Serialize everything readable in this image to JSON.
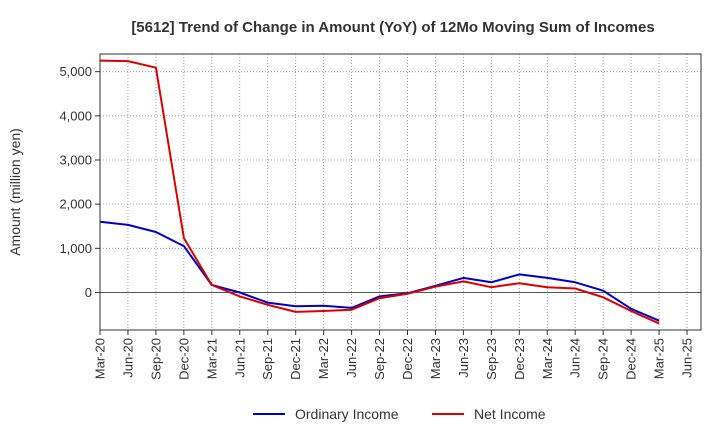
{
  "chart_data": {
    "type": "line",
    "title": "[5612]  Trend of Change in Amount (YoY) of 12Mo Moving Sum of Incomes",
    "xlabel": "",
    "ylabel": "Amount (million yen)",
    "ylim": [
      -850,
      5400
    ],
    "yticks": [
      0,
      1000,
      2000,
      3000,
      4000,
      5000
    ],
    "ytick_labels": [
      "0",
      "1,000",
      "2,000",
      "3,000",
      "4,000",
      "5,000"
    ],
    "categories": [
      "Mar-20",
      "Jun-20",
      "Sep-20",
      "Dec-20",
      "Mar-21",
      "Jun-21",
      "Sep-21",
      "Dec-21",
      "Mar-22",
      "Jun-22",
      "Sep-22",
      "Dec-22",
      "Mar-23",
      "Jun-23",
      "Sep-23",
      "Dec-23",
      "Mar-24",
      "Jun-24",
      "Sep-24",
      "Dec-24",
      "Mar-25",
      "Jun-25"
    ],
    "grid": true,
    "legend_position": "bottom",
    "series": [
      {
        "name": "Ordinary Income",
        "color": "#0000cc",
        "values": [
          1600,
          1530,
          1370,
          1050,
          170,
          0,
          -230,
          -310,
          -300,
          -350,
          -90,
          -20,
          150,
          330,
          230,
          410,
          330,
          230,
          40,
          -370,
          -640,
          null
        ]
      },
      {
        "name": "Net Income",
        "color": "#dd0000",
        "values": [
          5250,
          5240,
          5090,
          1230,
          170,
          -90,
          -280,
          -440,
          -420,
          -390,
          -130,
          -30,
          130,
          250,
          120,
          210,
          120,
          90,
          -110,
          -420,
          -700,
          null
        ]
      }
    ]
  }
}
